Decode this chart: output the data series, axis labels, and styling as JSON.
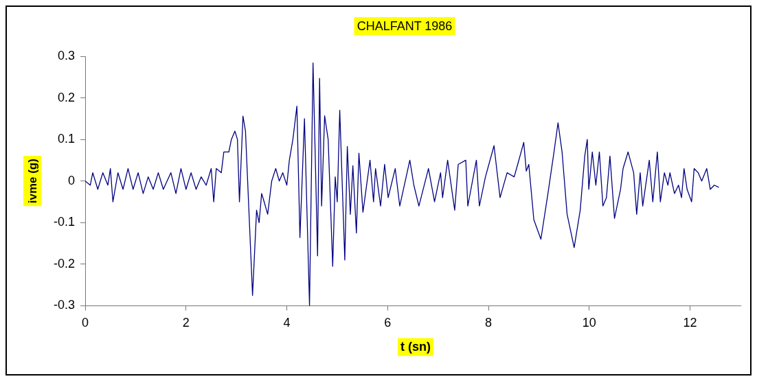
{
  "chart_data": {
    "type": "line",
    "title": "CHALFANT 1986",
    "xlabel": "t (sn)",
    "ylabel": "ivme (g)",
    "xlim": [
      0,
      13
    ],
    "xticks": [
      0,
      2,
      4,
      6,
      8,
      10,
      12
    ],
    "ylim": [
      -0.3,
      0.3
    ],
    "yticks": [
      -0.3,
      -0.2,
      -0.1,
      0,
      0.1,
      0.2,
      0.3
    ],
    "marker": "none",
    "line_style": "solid",
    "x": [
      0,
      0.1,
      0.15,
      0.25,
      0.35,
      0.45,
      0.5,
      0.55,
      0.65,
      0.75,
      0.85,
      0.95,
      1.05,
      1.15,
      1.25,
      1.35,
      1.45,
      1.55,
      1.7,
      1.8,
      1.9,
      2.0,
      2.1,
      2.2,
      2.3,
      2.4,
      2.5,
      2.55,
      2.6,
      2.7,
      2.75,
      2.85,
      2.9,
      2.97,
      3.02,
      3.06,
      3.13,
      3.18,
      3.32,
      3.4,
      3.45,
      3.5,
      3.55,
      3.62,
      3.7,
      3.78,
      3.85,
      3.92,
      4.0,
      4.05,
      4.12,
      4.2,
      4.26,
      4.35,
      4.45,
      4.52,
      4.61,
      4.65,
      4.69,
      4.75,
      4.82,
      4.91,
      4.96,
      5.0,
      5.05,
      5.15,
      5.2,
      5.26,
      5.31,
      5.38,
      5.43,
      5.51,
      5.65,
      5.72,
      5.76,
      5.86,
      5.94,
      6.01,
      6.15,
      6.24,
      6.44,
      6.52,
      6.62,
      6.81,
      6.93,
      7.05,
      7.09,
      7.19,
      7.33,
      7.4,
      7.55,
      7.59,
      7.76,
      7.82,
      7.94,
      8.11,
      8.23,
      8.37,
      8.51,
      8.58,
      8.7,
      8.75,
      8.8,
      8.9,
      9.04,
      9.18,
      9.3,
      9.38,
      9.46,
      9.56,
      9.7,
      9.82,
      9.91,
      9.96,
      9.99,
      10.06,
      10.13,
      10.2,
      10.27,
      10.34,
      10.41,
      10.5,
      10.62,
      10.67,
      10.77,
      10.88,
      10.94,
      11.01,
      11.06,
      11.19,
      11.26,
      11.35,
      11.41,
      11.49,
      11.56,
      11.6,
      11.69,
      11.77,
      11.83,
      11.88,
      11.94,
      12.03,
      12.08,
      12.16,
      12.23,
      12.33,
      12.4,
      12.48,
      12.57
    ],
    "series": [
      {
        "color": "#000080",
        "values": [
          0,
          -0.01,
          0.02,
          -0.02,
          0.02,
          -0.01,
          0.03,
          -0.05,
          0.02,
          -0.02,
          0.03,
          -0.02,
          0.02,
          -0.03,
          0.01,
          -0.02,
          0.02,
          -0.02,
          0.02,
          -0.03,
          0.03,
          -0.02,
          0.02,
          -0.02,
          0.01,
          -0.01,
          0.03,
          -0.05,
          0.03,
          0.02,
          0.07,
          0.07,
          0.1,
          0.12,
          0.1,
          -0.05,
          0.156,
          0.12,
          -0.275,
          -0.07,
          -0.1,
          -0.03,
          -0.05,
          -0.08,
          0,
          0.03,
          0,
          0.02,
          -0.01,
          0.05,
          0.1,
          0.18,
          -0.136,
          0.15,
          -0.3,
          0.284,
          -0.18,
          0.247,
          -0.06,
          0.157,
          0.1,
          -0.205,
          0.01,
          -0.05,
          0.17,
          -0.19,
          0.083,
          -0.08,
          0.037,
          -0.125,
          0.067,
          -0.075,
          0.05,
          -0.05,
          0.03,
          -0.06,
          0.04,
          -0.04,
          0.03,
          -0.06,
          0.05,
          -0.01,
          -0.06,
          0.03,
          -0.05,
          0.02,
          -0.04,
          0.05,
          -0.07,
          0.04,
          0.05,
          -0.06,
          0.05,
          -0.06,
          0.01,
          0.085,
          -0.04,
          0.02,
          0.01,
          0.04,
          0.093,
          0.024,
          0.04,
          -0.093,
          -0.14,
          -0.03,
          0.07,
          0.14,
          0.07,
          -0.08,
          -0.16,
          -0.07,
          0.06,
          0.1,
          -0.02,
          0.07,
          -0.01,
          0.07,
          -0.06,
          -0.04,
          0.06,
          -0.09,
          -0.02,
          0.03,
          0.07,
          0.02,
          -0.08,
          0.02,
          -0.06,
          0.05,
          -0.05,
          0.07,
          -0.05,
          0.02,
          -0.01,
          0.02,
          -0.03,
          -0.01,
          -0.04,
          0.03,
          -0.02,
          -0.05,
          0.03,
          0.02,
          0,
          0.03,
          -0.02,
          -0.01,
          -0.015
        ]
      }
    ]
  }
}
